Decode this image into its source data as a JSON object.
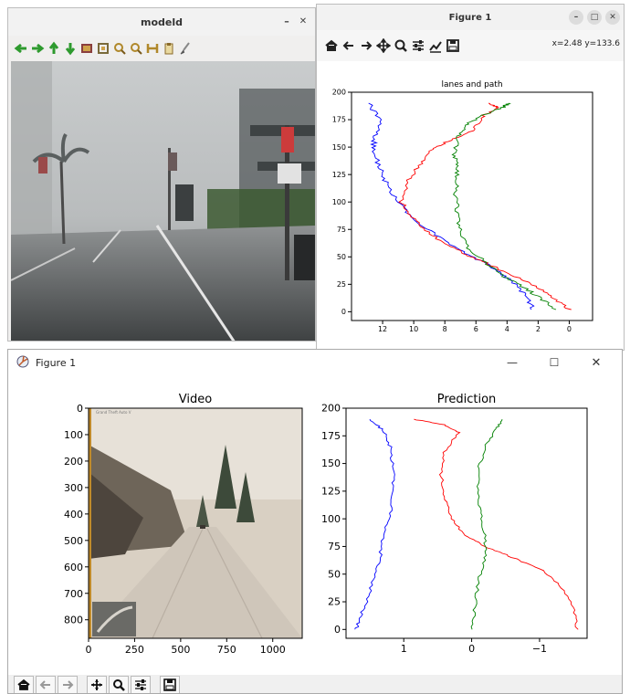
{
  "window_modeld": {
    "title": "modeld",
    "tools": [
      "left-arrow-icon",
      "right-arrow-icon",
      "up-arrow-icon",
      "down-arrow-icon",
      "record-icon",
      "fit-icon",
      "zoom-in-icon",
      "zoom-out-icon",
      "home-icon",
      "clipboard-icon",
      "brush-icon"
    ]
  },
  "window_figure_gtk": {
    "title": "Figure 1",
    "coords": "x=2.48 y=133.6",
    "tools": [
      "home-icon",
      "back-icon",
      "forward-icon",
      "pan-icon",
      "zoom-icon",
      "configure-icon",
      "edit-icon",
      "save-icon"
    ],
    "chart_data": {
      "type": "line",
      "title": "lanes and path",
      "xlim": [
        14,
        -1.5
      ],
      "ylim": [
        -8,
        200
      ],
      "xticks": [
        12,
        10,
        8,
        6,
        4,
        2,
        0
      ],
      "yticks": [
        0,
        25,
        50,
        75,
        100,
        125,
        150,
        175,
        200
      ],
      "series": [
        {
          "color": "#0000ff",
          "points": [
            [
              2.3,
              2
            ],
            [
              2.8,
              15
            ],
            [
              3.5,
              25
            ],
            [
              4.4,
              35
            ],
            [
              5.5,
              45
            ],
            [
              7.0,
              56
            ],
            [
              8.6,
              70
            ],
            [
              10.0,
              85
            ],
            [
              11.0,
              100
            ],
            [
              11.8,
              118
            ],
            [
              12.2,
              132
            ],
            [
              12.6,
              148
            ],
            [
              12.5,
              160
            ],
            [
              12.2,
              175
            ],
            [
              12.9,
              190
            ]
          ]
        },
        {
          "color": "#ff0000",
          "points": [
            [
              0.0,
              2
            ],
            [
              1.0,
              12
            ],
            [
              2.0,
              22
            ],
            [
              3.5,
              32
            ],
            [
              5.0,
              42
            ],
            [
              6.6,
              52
            ],
            [
              8.0,
              62
            ],
            [
              9.3,
              74
            ],
            [
              10.2,
              88
            ],
            [
              10.8,
              100
            ],
            [
              10.3,
              120
            ],
            [
              9.6,
              135
            ],
            [
              8.8,
              148
            ],
            [
              7.8,
              155
            ],
            [
              6.2,
              165
            ],
            [
              5.6,
              178
            ],
            [
              4.6,
              186
            ],
            [
              5.2,
              190
            ]
          ]
        },
        {
          "color": "#008000",
          "points": [
            [
              0.9,
              2
            ],
            [
              1.8,
              12
            ],
            [
              2.9,
              22
            ],
            [
              4.2,
              32
            ],
            [
              5.4,
              45
            ],
            [
              6.5,
              58
            ],
            [
              7.0,
              75
            ],
            [
              7.2,
              90
            ],
            [
              7.3,
              105
            ],
            [
              7.2,
              120
            ],
            [
              7.3,
              133
            ],
            [
              7.4,
              143
            ],
            [
              7.1,
              160
            ],
            [
              6.6,
              170
            ],
            [
              5.8,
              178
            ],
            [
              4.3,
              186
            ],
            [
              3.9,
              190
            ]
          ]
        }
      ]
    }
  },
  "window_figure_tk": {
    "title": "Figure 1",
    "video_panel": {
      "title": "Video",
      "xticks": [
        0,
        250,
        500,
        750,
        1000
      ],
      "yticks": [
        0,
        100,
        200,
        300,
        400,
        500,
        600,
        700,
        800
      ],
      "xlim": [
        0,
        1160
      ],
      "ylim": [
        870,
        0
      ],
      "caption": "Grand Theft Auto V"
    },
    "chart_data": {
      "type": "line",
      "title": "Prediction",
      "xlim": [
        1.85,
        -1.7
      ],
      "ylim": [
        -8,
        200
      ],
      "xticks": [
        1,
        0,
        -1
      ],
      "yticks": [
        0,
        25,
        50,
        75,
        100,
        125,
        150,
        175,
        200
      ],
      "series": [
        {
          "color": "#0000ff",
          "points": [
            [
              1.7,
              0
            ],
            [
              1.65,
              10
            ],
            [
              1.55,
              25
            ],
            [
              1.45,
              45
            ],
            [
              1.35,
              65
            ],
            [
              1.3,
              85
            ],
            [
              1.2,
              105
            ],
            [
              1.15,
              125
            ],
            [
              1.15,
              145
            ],
            [
              1.2,
              165
            ],
            [
              1.3,
              180
            ],
            [
              1.5,
              190
            ]
          ]
        },
        {
          "color": "#ff0000",
          "points": [
            [
              -1.55,
              0
            ],
            [
              -1.5,
              20
            ],
            [
              -1.3,
              40
            ],
            [
              -1.0,
              55
            ],
            [
              -0.6,
              65
            ],
            [
              -0.2,
              75
            ],
            [
              0.1,
              85
            ],
            [
              0.3,
              100
            ],
            [
              0.4,
              120
            ],
            [
              0.45,
              140
            ],
            [
              0.4,
              160
            ],
            [
              0.2,
              178
            ],
            [
              0.4,
              185
            ],
            [
              0.85,
              190
            ]
          ]
        },
        {
          "color": "#008000",
          "points": [
            [
              0.0,
              0
            ],
            [
              -0.05,
              20
            ],
            [
              -0.1,
              45
            ],
            [
              -0.2,
              65
            ],
            [
              -0.2,
              80
            ],
            [
              -0.15,
              100
            ],
            [
              -0.1,
              120
            ],
            [
              -0.1,
              145
            ],
            [
              -0.2,
              165
            ],
            [
              -0.35,
              180
            ],
            [
              -0.45,
              190
            ]
          ]
        }
      ]
    },
    "tools": [
      "home-icon",
      "back-icon",
      "forward-icon",
      "pan-icon",
      "zoom-icon",
      "configure-icon",
      "save-icon"
    ]
  }
}
